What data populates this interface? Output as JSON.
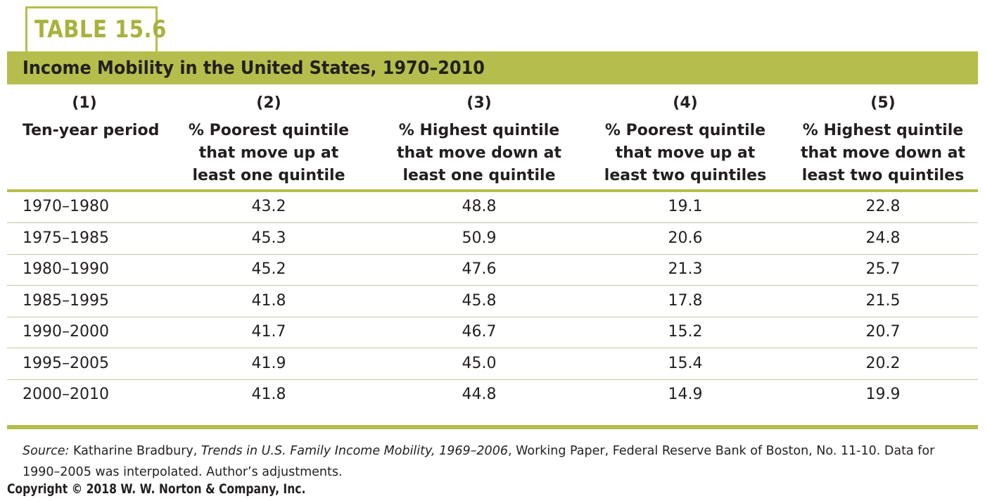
{
  "table_label": "TABLE 15.6",
  "title": "Income Mobility in the United States, 1970–2010",
  "colors": {
    "accent": "#b5be4c",
    "label_text": "#a8b23c",
    "text": "#231f20"
  },
  "columns": [
    {
      "num": "(1)",
      "lines": [
        "Ten-year period"
      ]
    },
    {
      "num": "(2)",
      "lines": [
        "% Poorest quintile",
        "that move up at",
        "least one quintile"
      ]
    },
    {
      "num": "(3)",
      "lines": [
        "% Highest quintile",
        "that move down at",
        "least one quintile"
      ]
    },
    {
      "num": "(4)",
      "lines": [
        "% Poorest quintile",
        "that move up at",
        "least two quintiles"
      ]
    },
    {
      "num": "(5)",
      "lines": [
        "% Highest quintile",
        "that move down at",
        "least two quintiles"
      ]
    }
  ],
  "rows": [
    [
      "1970–1980",
      "43.2",
      "48.8",
      "19.1",
      "22.8"
    ],
    [
      "1975–1985",
      "45.3",
      "50.9",
      "20.6",
      "24.8"
    ],
    [
      "1980–1990",
      "45.2",
      "47.6",
      "21.3",
      "25.7"
    ],
    [
      "1985–1995",
      "41.8",
      "45.8",
      "17.8",
      "21.5"
    ],
    [
      "1990–2000",
      "41.7",
      "46.7",
      "15.2",
      "20.7"
    ],
    [
      "1995–2005",
      "41.9",
      "45.0",
      "15.4",
      "20.2"
    ],
    [
      "2000–2010",
      "41.8",
      "44.8",
      "14.9",
      "19.9"
    ]
  ],
  "source": {
    "label": "Source:",
    "author": " Katharine Bradbury, ",
    "work": "Trends in U.S. Family Income Mobility, 1969–2006",
    "rest": ", Working Paper, Federal Reserve Bank of Boston, No. 11-10. Data for 1990–2005 was interpolated. Author’s adjustments."
  },
  "copyright": "Copyright © 2018 W. W. Norton & Company, Inc."
}
